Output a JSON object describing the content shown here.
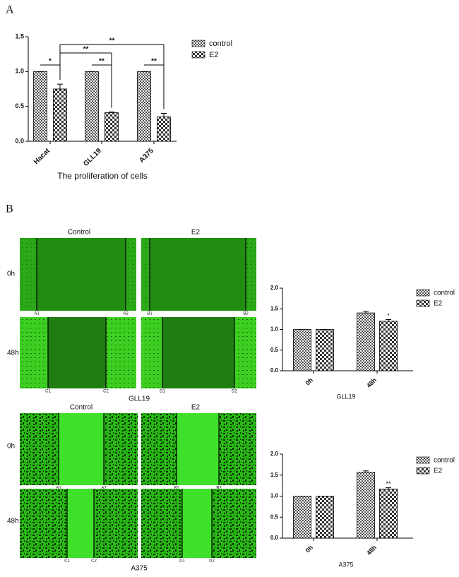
{
  "panel_labels": [
    "A",
    "B"
  ],
  "chart_data": [
    {
      "type": "bar",
      "categories": [
        "Hacat",
        "GLL19",
        "A375"
      ],
      "series": [
        {
          "name": "control",
          "color": "#555555",
          "values": [
            1.0,
            1.0,
            1.0
          ],
          "errors": [
            0,
            0,
            0
          ]
        },
        {
          "name": "E2",
          "color": "#333333",
          "values": [
            0.75,
            0.41,
            0.35
          ],
          "errors": [
            0.07,
            0.01,
            0.05
          ]
        }
      ],
      "ylim": [
        0,
        1.5
      ],
      "yticks": [
        {
          "value": 0,
          "label": "0.0"
        },
        {
          "value": 0.5,
          "label": "0.5"
        },
        {
          "value": 1,
          "label": "1.0"
        },
        {
          "value": 1.5,
          "label": "1.5"
        }
      ],
      "xlabel": "The proliferation of cells",
      "annotations": [
        "*",
        "**",
        "**",
        "**",
        "**"
      ],
      "legend": "right"
    },
    {
      "type": "bar",
      "categories": [
        "0h",
        "48h"
      ],
      "series": [
        {
          "name": "control",
          "color": "#555555",
          "values": [
            1.0,
            1.4
          ],
          "errors": [
            0,
            0.04
          ]
        },
        {
          "name": "E2",
          "color": "#333333",
          "values": [
            1.0,
            1.2
          ],
          "errors": [
            0,
            0.04
          ]
        }
      ],
      "ylim": [
        0,
        2
      ],
      "yticks": [
        {
          "value": 0,
          "label": "0.0"
        },
        {
          "value": 0.5,
          "label": "0.5"
        },
        {
          "value": 1,
          "label": "1.0"
        },
        {
          "value": 1.5,
          "label": "1.5"
        },
        {
          "value": 2,
          "label": "2.0"
        }
      ],
      "xlabel": "GLL19",
      "annotations": [
        "*"
      ],
      "legend": "right"
    },
    {
      "type": "bar",
      "categories": [
        "0h",
        "48h"
      ],
      "series": [
        {
          "name": "control",
          "color": "#555555",
          "values": [
            1.0,
            1.57
          ],
          "errors": [
            0,
            0.03
          ]
        },
        {
          "name": "E2",
          "color": "#333333",
          "values": [
            1.0,
            1.17
          ],
          "errors": [
            0,
            0.03
          ]
        }
      ],
      "ylim": [
        0,
        2
      ],
      "yticks": [
        {
          "value": 0,
          "label": "0.0"
        },
        {
          "value": 0.5,
          "label": "0.5"
        },
        {
          "value": 1,
          "label": "1.0"
        },
        {
          "value": 1.5,
          "label": "1.5"
        },
        {
          "value": 2,
          "label": "2.0"
        }
      ],
      "xlabel": "A375",
      "annotations": [
        "**"
      ],
      "legend": "right"
    }
  ],
  "micrograph_sets": [
    {
      "columns": [
        "Control",
        "E2"
      ],
      "rows": [
        "0h",
        "48h"
      ],
      "scratch_labels": [
        [
          "A1",
          "A2"
        ],
        [
          "B1",
          "B2"
        ],
        [
          "C1",
          "C2"
        ],
        [
          "D1",
          "D2"
        ]
      ],
      "caption": "GLL19"
    },
    {
      "columns": [
        "Control",
        "E2"
      ],
      "rows": [
        "0h",
        "48h"
      ],
      "scratch_labels": [
        [
          "A1",
          "A2"
        ],
        [
          "B1",
          "B2"
        ],
        [
          "C1",
          "C2"
        ],
        [
          "D1",
          "D2"
        ]
      ],
      "caption": "A375"
    }
  ]
}
